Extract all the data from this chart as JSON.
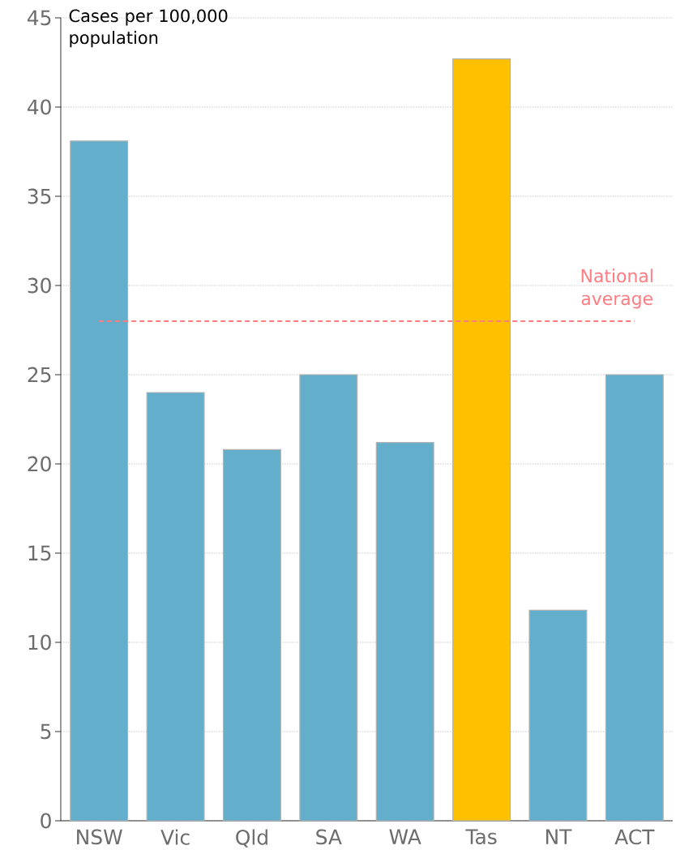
{
  "chart_data": {
    "type": "bar",
    "ylabel": "Cases per 100,000 population",
    "categories": [
      "NSW",
      "Vic",
      "Qld",
      "SA",
      "WA",
      "Tas",
      "NT",
      "ACT"
    ],
    "values": [
      38.1,
      24.0,
      20.8,
      25.0,
      21.2,
      42.7,
      11.8,
      25.0
    ],
    "colors": [
      "#62aecb",
      "#62aecb",
      "#62aecb",
      "#62aecb",
      "#62aecb",
      "#ffc000",
      "#62aecb",
      "#62aecb"
    ],
    "ylim": [
      0,
      45
    ],
    "yticks": [
      0,
      5,
      10,
      15,
      20,
      25,
      30,
      35,
      40,
      45
    ],
    "grid": "y",
    "ref_lines": [
      {
        "axis": "y",
        "value": 28.0,
        "label": "National average",
        "color": "#ff7c80",
        "line_style": "dashed"
      }
    ]
  }
}
